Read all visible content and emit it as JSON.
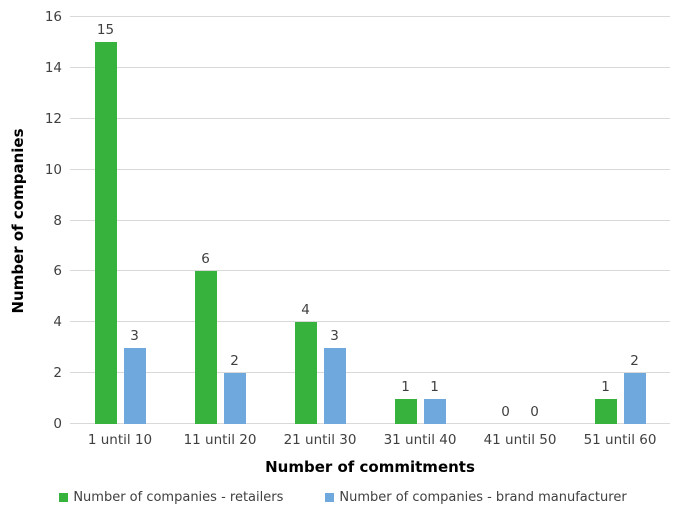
{
  "chart_data": {
    "type": "bar",
    "xlabel": "Number of commitments",
    "ylabel": "Number of companies",
    "categories": [
      "1 until 10",
      "11 until 20",
      "21 until 30",
      "31 until 40",
      "41 until 50",
      "51 until 60"
    ],
    "series": [
      {
        "name": "Number of companies - retailers",
        "color": "#37B23C",
        "values": [
          15,
          6,
          4,
          1,
          0,
          1
        ]
      },
      {
        "name": "Number of companies - brand manufacturer",
        "color": "#6FA8DC",
        "values": [
          3,
          2,
          3,
          1,
          0,
          2
        ]
      }
    ],
    "ylim": [
      0,
      16
    ],
    "yticks": [
      0,
      2,
      4,
      6,
      8,
      10,
      12,
      14,
      16
    ],
    "grid": "horizontal",
    "gridline_color": "#d9d9d9",
    "legend_position": "bottom",
    "value_labels": true,
    "background": "#ffffff"
  }
}
